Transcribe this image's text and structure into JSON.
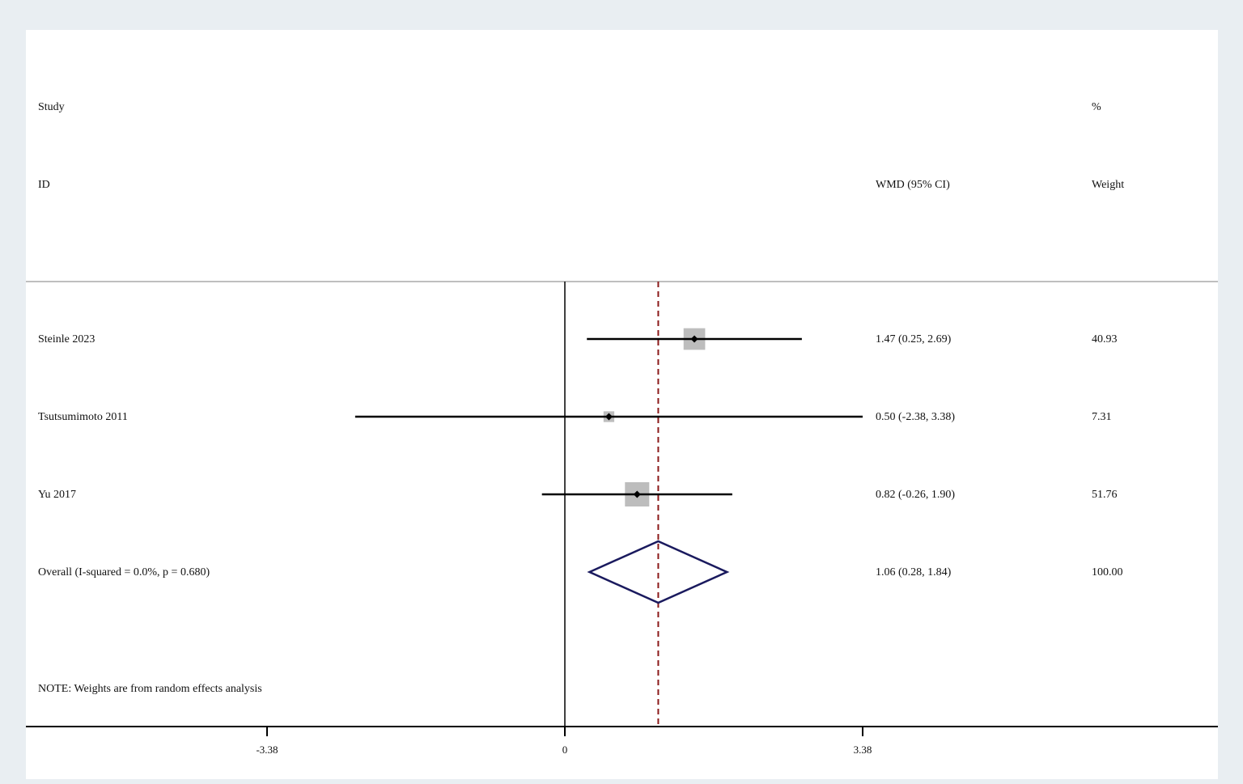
{
  "header": {
    "study_label": "Study",
    "id_label": "ID",
    "effect_label": "WMD (95% CI)",
    "percent_label": "%",
    "weight_label": "Weight"
  },
  "chart_data": {
    "type": "forest",
    "measure": "WMD",
    "studies": [
      {
        "name": "Steinle 2023",
        "estimate": 1.47,
        "ci": [
          0.25,
          2.69
        ],
        "ci_text": "1.47 (0.25, 2.69)",
        "weight": 40.93,
        "weight_text": "40.93"
      },
      {
        "name": "Tsutsumimoto 2011",
        "estimate": 0.5,
        "ci": [
          -2.38,
          3.38
        ],
        "ci_text": "0.50 (-2.38, 3.38)",
        "weight": 7.31,
        "weight_text": "7.31"
      },
      {
        "name": "Yu 2017",
        "estimate": 0.82,
        "ci": [
          -0.26,
          1.9
        ],
        "ci_text": "0.82 (-0.26, 1.90)",
        "weight": 51.76,
        "weight_text": "51.76"
      }
    ],
    "overall": {
      "label": "Overall  (I-squared = 0.0%, p = 0.680)",
      "estimate": 1.06,
      "ci": [
        0.28,
        1.84
      ],
      "ci_text": "1.06 (0.28, 1.84)",
      "weight_text": "100.00"
    },
    "xaxis": {
      "ticks": [
        -3.38,
        0,
        3.38
      ],
      "tick_labels": [
        "-3.38",
        "0",
        "3.38"
      ],
      "range": [
        -3.38,
        3.38
      ]
    },
    "null_line": 0,
    "note": "NOTE: Weights are from random effects analysis",
    "colors": {
      "background": "#e9eef2",
      "panel": "#ffffff",
      "weight_box": "#bdbdbd",
      "diamond": "#1a1a5e",
      "overall_line": "#8b1a1a",
      "ci_line": "#000000"
    }
  }
}
